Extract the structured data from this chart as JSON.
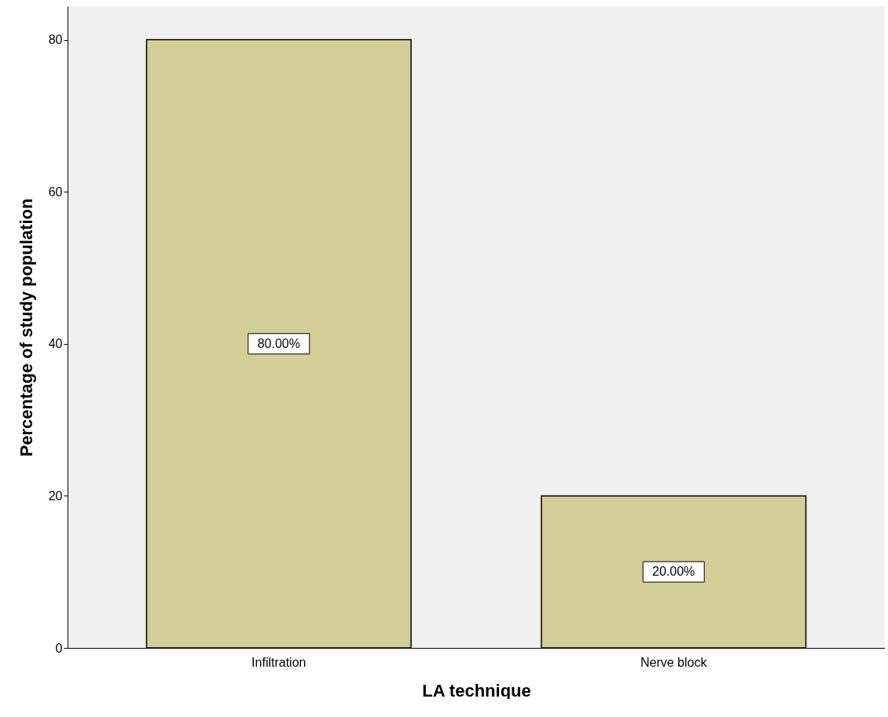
{
  "chart_data": {
    "type": "bar",
    "xlabel": "LA technique",
    "ylabel": "Percentage of study population",
    "categories": [
      "Infiltration",
      "Nerve block"
    ],
    "values": [
      80,
      20
    ],
    "value_labels": [
      "80.00%",
      "20.00%"
    ],
    "color": "#d3ce97",
    "ylim": [
      0,
      84.4
    ],
    "yticks": [
      0,
      20,
      40,
      60,
      80
    ],
    "grid": false
  }
}
